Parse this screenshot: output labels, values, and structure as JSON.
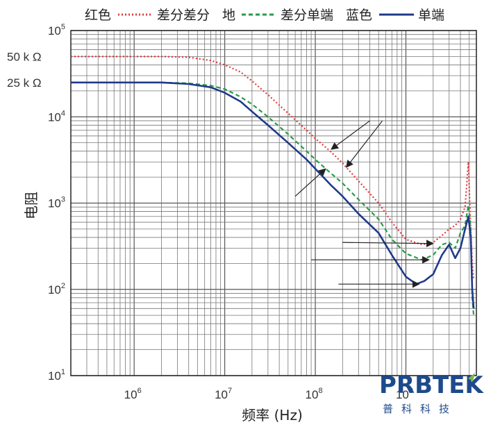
{
  "chart_data": {
    "type": "line",
    "title": "",
    "xlabel": "频率 (Hz)",
    "ylabel": "电阻",
    "x_scale": "log",
    "y_scale": "log",
    "xlim": [
      200000,
      6000000000
    ],
    "ylim": [
      10,
      100000
    ],
    "grid": true,
    "x_ticks": [
      {
        "value": 1000000,
        "base": "10",
        "exp": "6"
      },
      {
        "value": 10000000,
        "base": "10",
        "exp": "7"
      },
      {
        "value": 100000000,
        "base": "10",
        "exp": "8"
      },
      {
        "value": 1000000000,
        "base": "10",
        "exp": "9"
      }
    ],
    "y_ticks": [
      {
        "value": 10,
        "base": "10",
        "exp": "1"
      },
      {
        "value": 100,
        "base": "10",
        "exp": "2"
      },
      {
        "value": 1000,
        "base": "10",
        "exp": "3"
      },
      {
        "value": 10000,
        "base": "10",
        "exp": "4"
      },
      {
        "value": 100000,
        "base": "10",
        "exp": "5"
      }
    ],
    "annotations_left": [
      {
        "text": "50 k Ω",
        "y": 50000
      },
      {
        "text": "25 k Ω",
        "y": 25000
      }
    ],
    "legend": {
      "placement": "top",
      "entries": [
        {
          "color_label": "红色",
          "style": "dotted",
          "name": "差分差分"
        },
        {
          "color_label": "地",
          "style": "dashed",
          "name": "差分单端"
        },
        {
          "color_label": "蓝色",
          "style": "solid",
          "name": "单端"
        }
      ]
    },
    "series": [
      {
        "name": "差分差分",
        "color": "#e03a3e",
        "style": "dotted",
        "points": [
          [
            200000,
            50000
          ],
          [
            500000,
            50000
          ],
          [
            1000000,
            50000
          ],
          [
            2000000,
            50000
          ],
          [
            4000000,
            49000
          ],
          [
            7000000,
            45000
          ],
          [
            10000000,
            40000
          ],
          [
            15000000,
            33000
          ],
          [
            20000000,
            26000
          ],
          [
            30000000,
            18000
          ],
          [
            50000000,
            11000
          ],
          [
            80000000,
            7000
          ],
          [
            100000000,
            5600
          ],
          [
            150000000,
            3900
          ],
          [
            200000000,
            2900
          ],
          [
            300000000,
            1800
          ],
          [
            500000000,
            1000
          ],
          [
            700000000,
            600
          ],
          [
            1000000000,
            380
          ],
          [
            1500000000,
            330
          ],
          [
            2000000000,
            350
          ],
          [
            2500000000,
            420
          ],
          [
            3000000000,
            500
          ],
          [
            3500000000,
            550
          ],
          [
            4000000000,
            650
          ],
          [
            4500000000,
            900
          ],
          [
            4900000000,
            3000
          ],
          [
            5100000000,
            800
          ],
          [
            5400000000,
            200
          ],
          [
            5600000000,
            130
          ]
        ]
      },
      {
        "name": "差分单端",
        "color": "#2a9a4a",
        "style": "dashed",
        "points": [
          [
            200000,
            25000
          ],
          [
            500000,
            25000
          ],
          [
            1000000,
            25000
          ],
          [
            2000000,
            25000
          ],
          [
            4000000,
            24500
          ],
          [
            7000000,
            23000
          ],
          [
            10000000,
            21000
          ],
          [
            15000000,
            17000
          ],
          [
            20000000,
            14000
          ],
          [
            30000000,
            10000
          ],
          [
            50000000,
            6300
          ],
          [
            80000000,
            4000
          ],
          [
            100000000,
            3200
          ],
          [
            150000000,
            2200
          ],
          [
            200000000,
            1700
          ],
          [
            300000000,
            1100
          ],
          [
            500000000,
            650
          ],
          [
            700000000,
            380
          ],
          [
            1000000000,
            260
          ],
          [
            1500000000,
            220
          ],
          [
            2000000000,
            250
          ],
          [
            2500000000,
            330
          ],
          [
            3000000000,
            350
          ],
          [
            3500000000,
            300
          ],
          [
            4000000000,
            450
          ],
          [
            4500000000,
            550
          ],
          [
            4900000000,
            950
          ],
          [
            5200000000,
            500
          ],
          [
            5400000000,
            80
          ],
          [
            5600000000,
            50
          ]
        ]
      },
      {
        "name": "单端",
        "color": "#1f3a8a",
        "style": "solid",
        "points": [
          [
            200000,
            25000
          ],
          [
            500000,
            25000
          ],
          [
            1000000,
            25000
          ],
          [
            2000000,
            25000
          ],
          [
            4000000,
            24000
          ],
          [
            7000000,
            22000
          ],
          [
            10000000,
            19000
          ],
          [
            15000000,
            15000
          ],
          [
            20000000,
            11500
          ],
          [
            30000000,
            8000
          ],
          [
            50000000,
            5000
          ],
          [
            80000000,
            3200
          ],
          [
            100000000,
            2500
          ],
          [
            150000000,
            1600
          ],
          [
            200000000,
            1200
          ],
          [
            300000000,
            750
          ],
          [
            500000000,
            450
          ],
          [
            700000000,
            250
          ],
          [
            1000000000,
            140
          ],
          [
            1300000000,
            115
          ],
          [
            1600000000,
            125
          ],
          [
            2000000000,
            150
          ],
          [
            2500000000,
            250
          ],
          [
            3000000000,
            330
          ],
          [
            3500000000,
            230
          ],
          [
            4000000000,
            300
          ],
          [
            4500000000,
            500
          ],
          [
            4900000000,
            700
          ],
          [
            5200000000,
            400
          ],
          [
            5400000000,
            100
          ],
          [
            5600000000,
            60
          ]
        ]
      }
    ],
    "arrows_data": [
      {
        "from": [
          400000000,
          9000
        ],
        "to": [
          150000000,
          4200
        ]
      },
      {
        "from": [
          60000000,
          1200
        ],
        "to": [
          130000000,
          2500
        ]
      },
      {
        "from": [
          550000000,
          9000
        ],
        "to": [
          220000000,
          2600
        ]
      },
      {
        "from": [
          200000000,
          350
        ],
        "to": [
          2000000000,
          340
        ]
      },
      {
        "from": [
          90000000,
          220
        ],
        "to": [
          1800000000,
          220
        ]
      },
      {
        "from": [
          180000000,
          115
        ],
        "to": [
          1400000000,
          115
        ]
      }
    ]
  },
  "logo": {
    "brand": "PRBTEK",
    "subtitle": "普科科技"
  }
}
